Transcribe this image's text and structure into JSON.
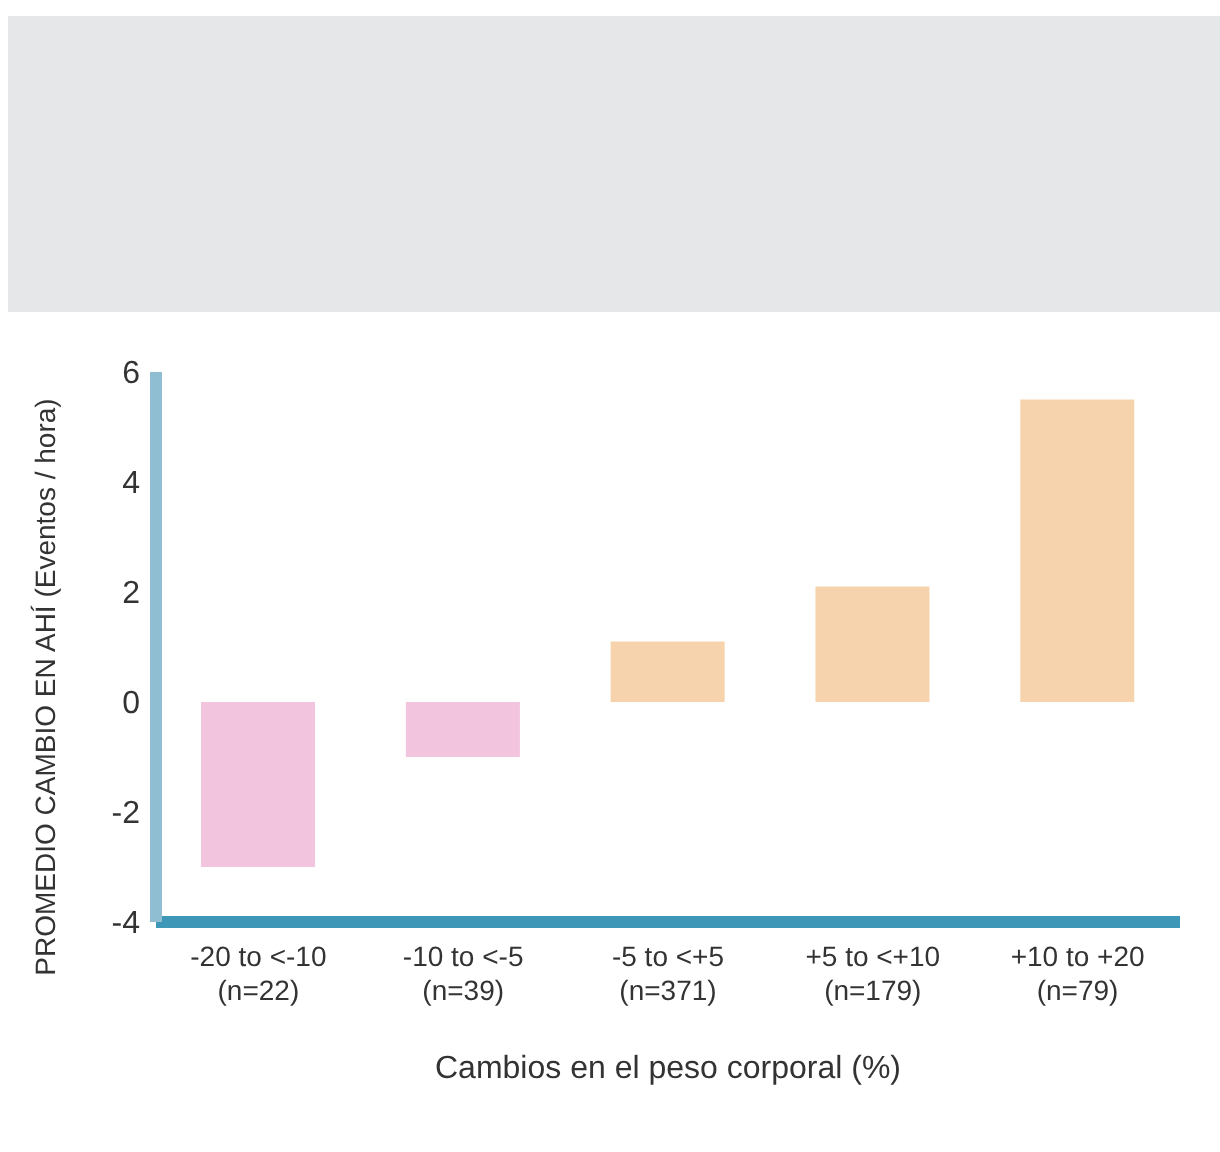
{
  "chart_data": {
    "type": "bar",
    "categories": [
      "-20 to <-10\n(n=22)",
      "-10 to <-5\n(n=39)",
      "-5 to <+5\n(n=371)",
      "+5 to <+10\n(n=179)",
      "+10 to +20\n(n=79)"
    ],
    "values": [
      -3,
      -1,
      1.1,
      2.1,
      5.5
    ],
    "colors": [
      "#f2c4de",
      "#f2c4de",
      "#f6d3ad",
      "#f6d3ad",
      "#f6d3ad"
    ],
    "ylim": [
      -4,
      6
    ],
    "yticks": [
      -4,
      -2,
      0,
      2,
      4,
      6
    ],
    "xlabel": "Cambios en el peso corporal (%)",
    "ylabel": "PROMEDIO CAMBIO EN AHÍ (Eventos / hora)",
    "grid": false,
    "legend": false
  }
}
